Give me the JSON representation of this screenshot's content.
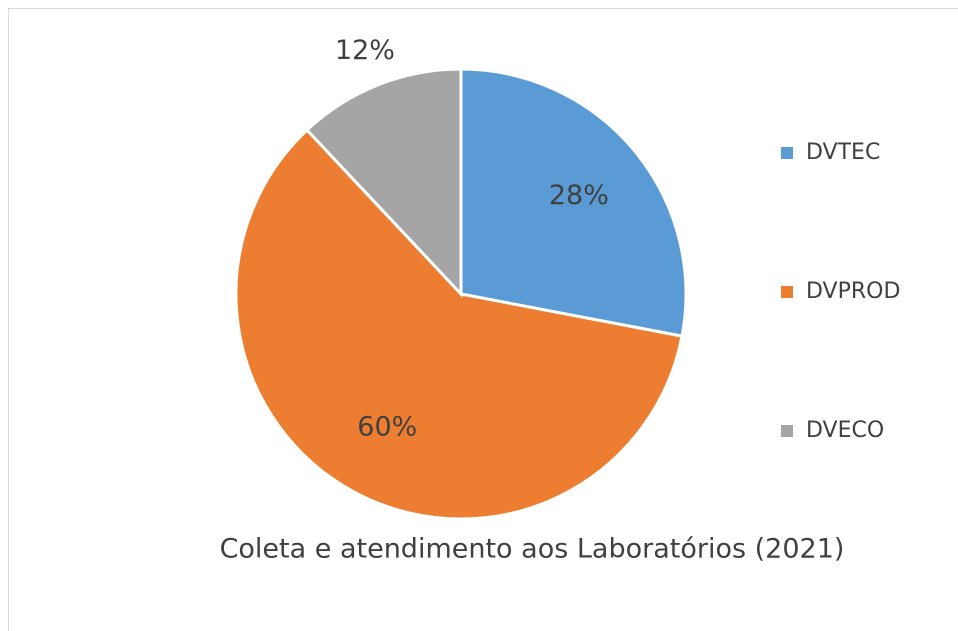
{
  "chart_data": {
    "type": "pie",
    "title": "Coleta e atendimento aos Laboratórios (2021)",
    "categories": [
      "DVTEC",
      "DVPROD",
      "DVECO"
    ],
    "values": [
      28,
      60,
      12
    ],
    "value_labels": [
      "28%",
      "60%",
      "12%"
    ],
    "colors": [
      "#5b9bd5",
      "#ed7d31",
      "#a5a5a5"
    ],
    "legend": "right"
  }
}
